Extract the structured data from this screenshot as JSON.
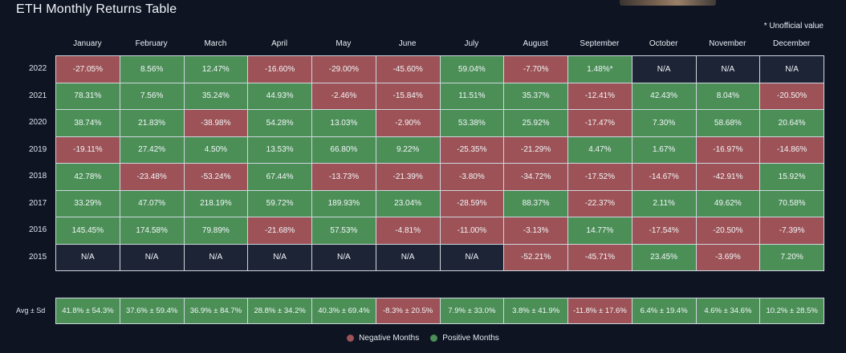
{
  "title": "ETH Monthly Returns Table",
  "note": "* Unofficial value",
  "colors": {
    "negative": "#9c5256",
    "positive": "#4b8f57",
    "na": "#1c2436"
  },
  "chart_data": {
    "type": "table",
    "title": "ETH Monthly Returns Table",
    "columns": [
      "January",
      "February",
      "March",
      "April",
      "May",
      "June",
      "July",
      "August",
      "September",
      "October",
      "November",
      "December"
    ],
    "rows": [
      {
        "year": "2022",
        "values": [
          "-27.05%",
          "8.56%",
          "12.47%",
          "-16.60%",
          "-29.00%",
          "-45.60%",
          "59.04%",
          "-7.70%",
          "1.48%*",
          "N/A",
          "N/A",
          "N/A"
        ]
      },
      {
        "year": "2021",
        "values": [
          "78.31%",
          "7.56%",
          "35.24%",
          "44.93%",
          "-2.46%",
          "-15.84%",
          "11.51%",
          "35.37%",
          "-12.41%",
          "42.43%",
          "8.04%",
          "-20.50%"
        ]
      },
      {
        "year": "2020",
        "values": [
          "38.74%",
          "21.83%",
          "-38.98%",
          "54.28%",
          "13.03%",
          "-2.90%",
          "53.38%",
          "25.92%",
          "-17.47%",
          "7.30%",
          "58.68%",
          "20.64%"
        ]
      },
      {
        "year": "2019",
        "values": [
          "-19.11%",
          "27.42%",
          "4.50%",
          "13.53%",
          "66.80%",
          "9.22%",
          "-25.35%",
          "-21.29%",
          "4.47%",
          "1.67%",
          "-16.97%",
          "-14.86%"
        ]
      },
      {
        "year": "2018",
        "values": [
          "42.78%",
          "-23.48%",
          "-53.24%",
          "67.44%",
          "-13.73%",
          "-21.39%",
          "-3.80%",
          "-34.72%",
          "-17.52%",
          "-14.67%",
          "-42.91%",
          "15.92%"
        ]
      },
      {
        "year": "2017",
        "values": [
          "33.29%",
          "47.07%",
          "218.19%",
          "59.72%",
          "189.93%",
          "23.04%",
          "-28.59%",
          "88.37%",
          "-22.37%",
          "2.11%",
          "49.62%",
          "70.58%"
        ]
      },
      {
        "year": "2016",
        "values": [
          "145.45%",
          "174.58%",
          "79.89%",
          "-21.68%",
          "57.53%",
          "-4.81%",
          "-11.00%",
          "-3.13%",
          "14.77%",
          "-17.54%",
          "-20.50%",
          "-7.39%"
        ]
      },
      {
        "year": "2015",
        "values": [
          "N/A",
          "N/A",
          "N/A",
          "N/A",
          "N/A",
          "N/A",
          "N/A",
          "-52.21%",
          "-45.71%",
          "23.45%",
          "-3.69%",
          "7.20%"
        ]
      }
    ],
    "summary_label": "Avg ± Sd",
    "summary": [
      "41.8% ± 54.3%",
      "37.6% ± 59.4%",
      "36.9% ± 84.7%",
      "28.8% ± 34.2%",
      "40.3% ± 69.4%",
      "-8.3% ± 20.5%",
      "7.9% ± 33.0%",
      "3.8% ± 41.9%",
      "-11.8% ± 17.6%",
      "6.4% ± 19.4%",
      "4.6% ± 34.6%",
      "10.2% ± 28.5%"
    ],
    "legend": [
      "Negative Months",
      "Positive Months"
    ]
  }
}
